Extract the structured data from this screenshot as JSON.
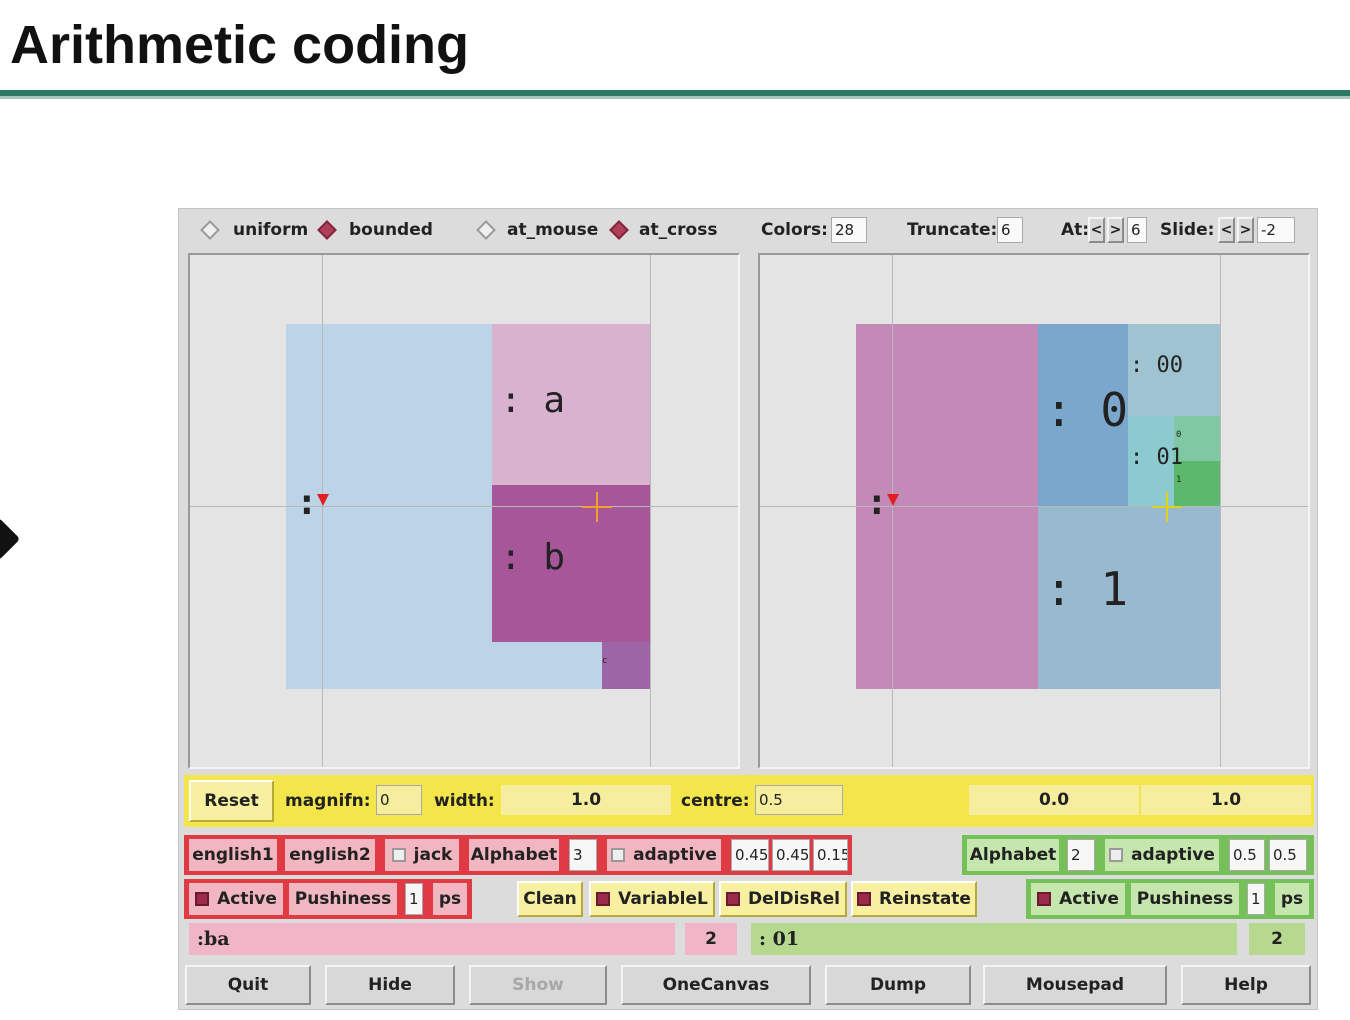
{
  "slide": {
    "title": "Arithmetic coding"
  },
  "colors": {
    "left_bg": "#bdd3e8",
    "a_region": "#d8b2cf",
    "b_region": "#a8569a",
    "small_region": "#9d65a6",
    "right_bg": "#c38ab8",
    "zero_region": "#7aa7cb",
    "one_region": "#98b9cf",
    "zero_zero_region": "#9fc3d0",
    "zero_one_region": "#8ccad0",
    "tiny_a": "#80c8a4",
    "tiny_b": "#5bb86c",
    "band_yellow": "#f2e64a",
    "group_red": "#e03b45",
    "group_green": "#76c05a",
    "cursor_red": "#e02020",
    "cross_orange": "#f0a030",
    "cross_yellow": "#e0d020"
  },
  "toolbar": {
    "uniform": "uniform",
    "bounded": "bounded",
    "at_mouse": "at_mouse",
    "at_cross": "at_cross",
    "colors_label": "Colors:",
    "colors_value": "28",
    "truncate_label": "Truncate:",
    "truncate_value": "6",
    "at_label": "At:",
    "at_prev": "<",
    "at_next": ">",
    "at_value": "6",
    "slide_label": "Slide:",
    "slide_prev": "<",
    "slide_next": ">",
    "slide_value": "-2",
    "selected_mode": "bounded",
    "selected_position": "at_cross"
  },
  "left_canvas": {
    "root_label": ":",
    "a_label": ": a",
    "b_label": ": b",
    "small_label": "c"
  },
  "right_canvas": {
    "root_label": ":",
    "zero_label": ": 0",
    "one_label": ": 1",
    "zero_zero_label": ": 00",
    "zero_one_label": ": 01",
    "tiny_label_0": "0",
    "tiny_label_1": "1"
  },
  "zoom_bar": {
    "reset": "Reset",
    "magnifn_label": "magnifn:",
    "magnifn_value": "0",
    "width_label": "width:",
    "width_value": "1.0",
    "centre_label": "centre:",
    "centre_value": "0.5",
    "range_low": "0.0",
    "range_high": "1.0"
  },
  "left_model": {
    "english1": "english1",
    "english2": "english2",
    "jack": "jack",
    "alphabet": "Alphabet",
    "alphabet_size": "3",
    "adaptive": "adaptive",
    "prob1": "0.45",
    "prob2": "0.45",
    "prob3": "0.15",
    "active": "Active",
    "pushiness": "Pushiness",
    "pushiness_value": "1",
    "ps": "ps"
  },
  "middle_controls": {
    "clean": "Clean",
    "variablel": "VariableL",
    "deldisrel": "DelDisRel",
    "reinstate": "Reinstate"
  },
  "right_model": {
    "alphabet": "Alphabet",
    "alphabet_size": "2",
    "adaptive": "adaptive",
    "prob1": "0.5",
    "prob2": "0.5",
    "active": "Active",
    "pushiness": "Pushiness",
    "pushiness_value": "1",
    "ps": "ps"
  },
  "status": {
    "left_string": ":ba",
    "left_count": "2",
    "right_string": ": 01",
    "right_count": "2"
  },
  "buttons": {
    "quit": "Quit",
    "hide": "Hide",
    "show": "Show",
    "onecanvas": "OneCanvas",
    "dump": "Dump",
    "mousepad": "Mousepad",
    "help": "Help"
  }
}
